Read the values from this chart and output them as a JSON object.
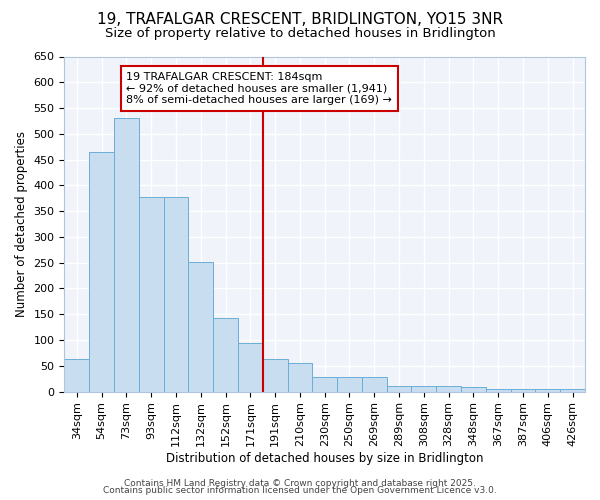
{
  "title1": "19, TRAFALGAR CRESCENT, BRIDLINGTON, YO15 3NR",
  "title2": "Size of property relative to detached houses in Bridlington",
  "xlabel": "Distribution of detached houses by size in Bridlington",
  "ylabel": "Number of detached properties",
  "bar_color": "#c8ddf0",
  "bar_edge_color": "#6aaed6",
  "categories": [
    "34sqm",
    "54sqm",
    "73sqm",
    "93sqm",
    "112sqm",
    "132sqm",
    "152sqm",
    "171sqm",
    "191sqm",
    "210sqm",
    "230sqm",
    "250sqm",
    "269sqm",
    "289sqm",
    "308sqm",
    "328sqm",
    "348sqm",
    "367sqm",
    "387sqm",
    "406sqm",
    "426sqm"
  ],
  "values": [
    63,
    465,
    530,
    378,
    378,
    252,
    143,
    95,
    63,
    55,
    28,
    28,
    28,
    10,
    10,
    10,
    8,
    5,
    5,
    5,
    5
  ],
  "vline_x_index": 8,
  "vline_color": "#cc0000",
  "annotation_text": "19 TRAFALGAR CRESCENT: 184sqm\n← 92% of detached houses are smaller (1,941)\n8% of semi-detached houses are larger (169) →",
  "annotation_box_color": "#ffffff",
  "annotation_box_edge": "#cc0000",
  "ylim": [
    0,
    650
  ],
  "yticks": [
    0,
    50,
    100,
    150,
    200,
    250,
    300,
    350,
    400,
    450,
    500,
    550,
    600,
    650
  ],
  "footer1": "Contains HM Land Registry data © Crown copyright and database right 2025.",
  "footer2": "Contains public sector information licensed under the Open Government Licence v3.0.",
  "bg_color": "#ffffff",
  "plot_bg_color": "#f0f4fa",
  "grid_color": "#ffffff",
  "title1_fontsize": 11,
  "title2_fontsize": 9.5,
  "xlabel_fontsize": 8.5,
  "ylabel_fontsize": 8.5,
  "tick_fontsize": 8,
  "annotation_fontsize": 8,
  "footer_fontsize": 6.5
}
